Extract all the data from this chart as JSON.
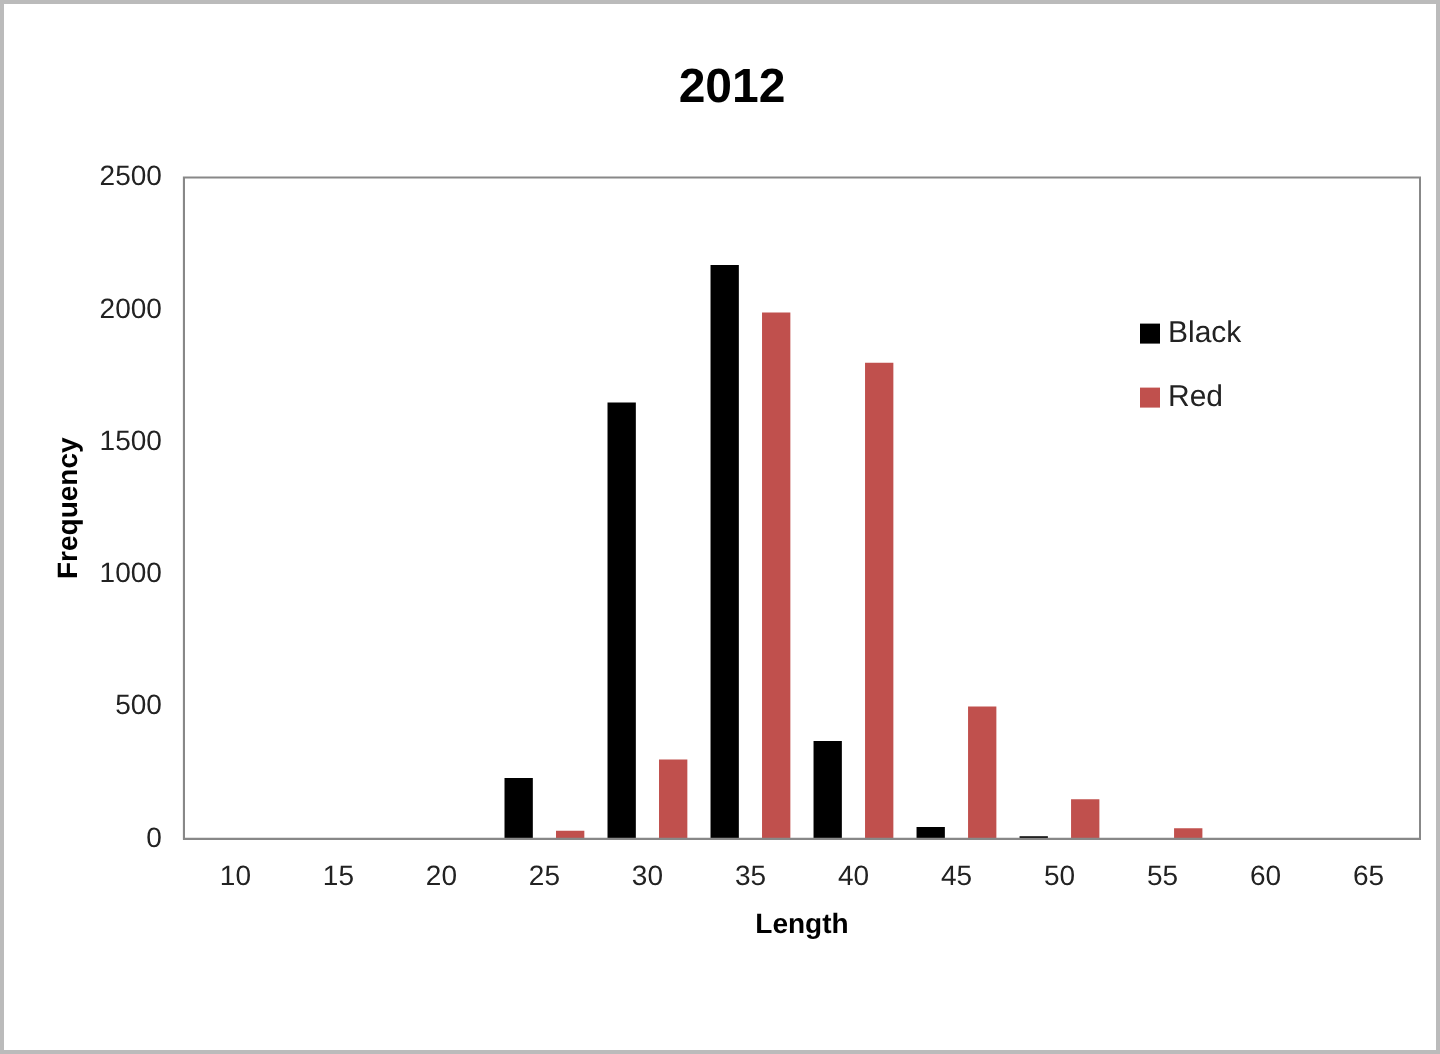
{
  "chart_data": {
    "type": "bar",
    "title": "2012",
    "xlabel": "Length",
    "ylabel": "Frequency",
    "categories": [
      "10",
      "15",
      "20",
      "25",
      "30",
      "35",
      "40",
      "45",
      "50",
      "55",
      "60",
      "65"
    ],
    "series": [
      {
        "name": "Black",
        "color": "#000000",
        "values": [
          0,
          0,
          0,
          230,
          1650,
          2170,
          370,
          45,
          10,
          0,
          0,
          0
        ]
      },
      {
        "name": "Red",
        "color": "#c0504d",
        "values": [
          0,
          0,
          0,
          30,
          300,
          1990,
          1800,
          500,
          150,
          40,
          0,
          0
        ]
      }
    ],
    "ylim": [
      0,
      2500
    ],
    "yticks": [
      0,
      500,
      1000,
      1500,
      2000,
      2500
    ],
    "grid": false,
    "legend": "top right"
  }
}
